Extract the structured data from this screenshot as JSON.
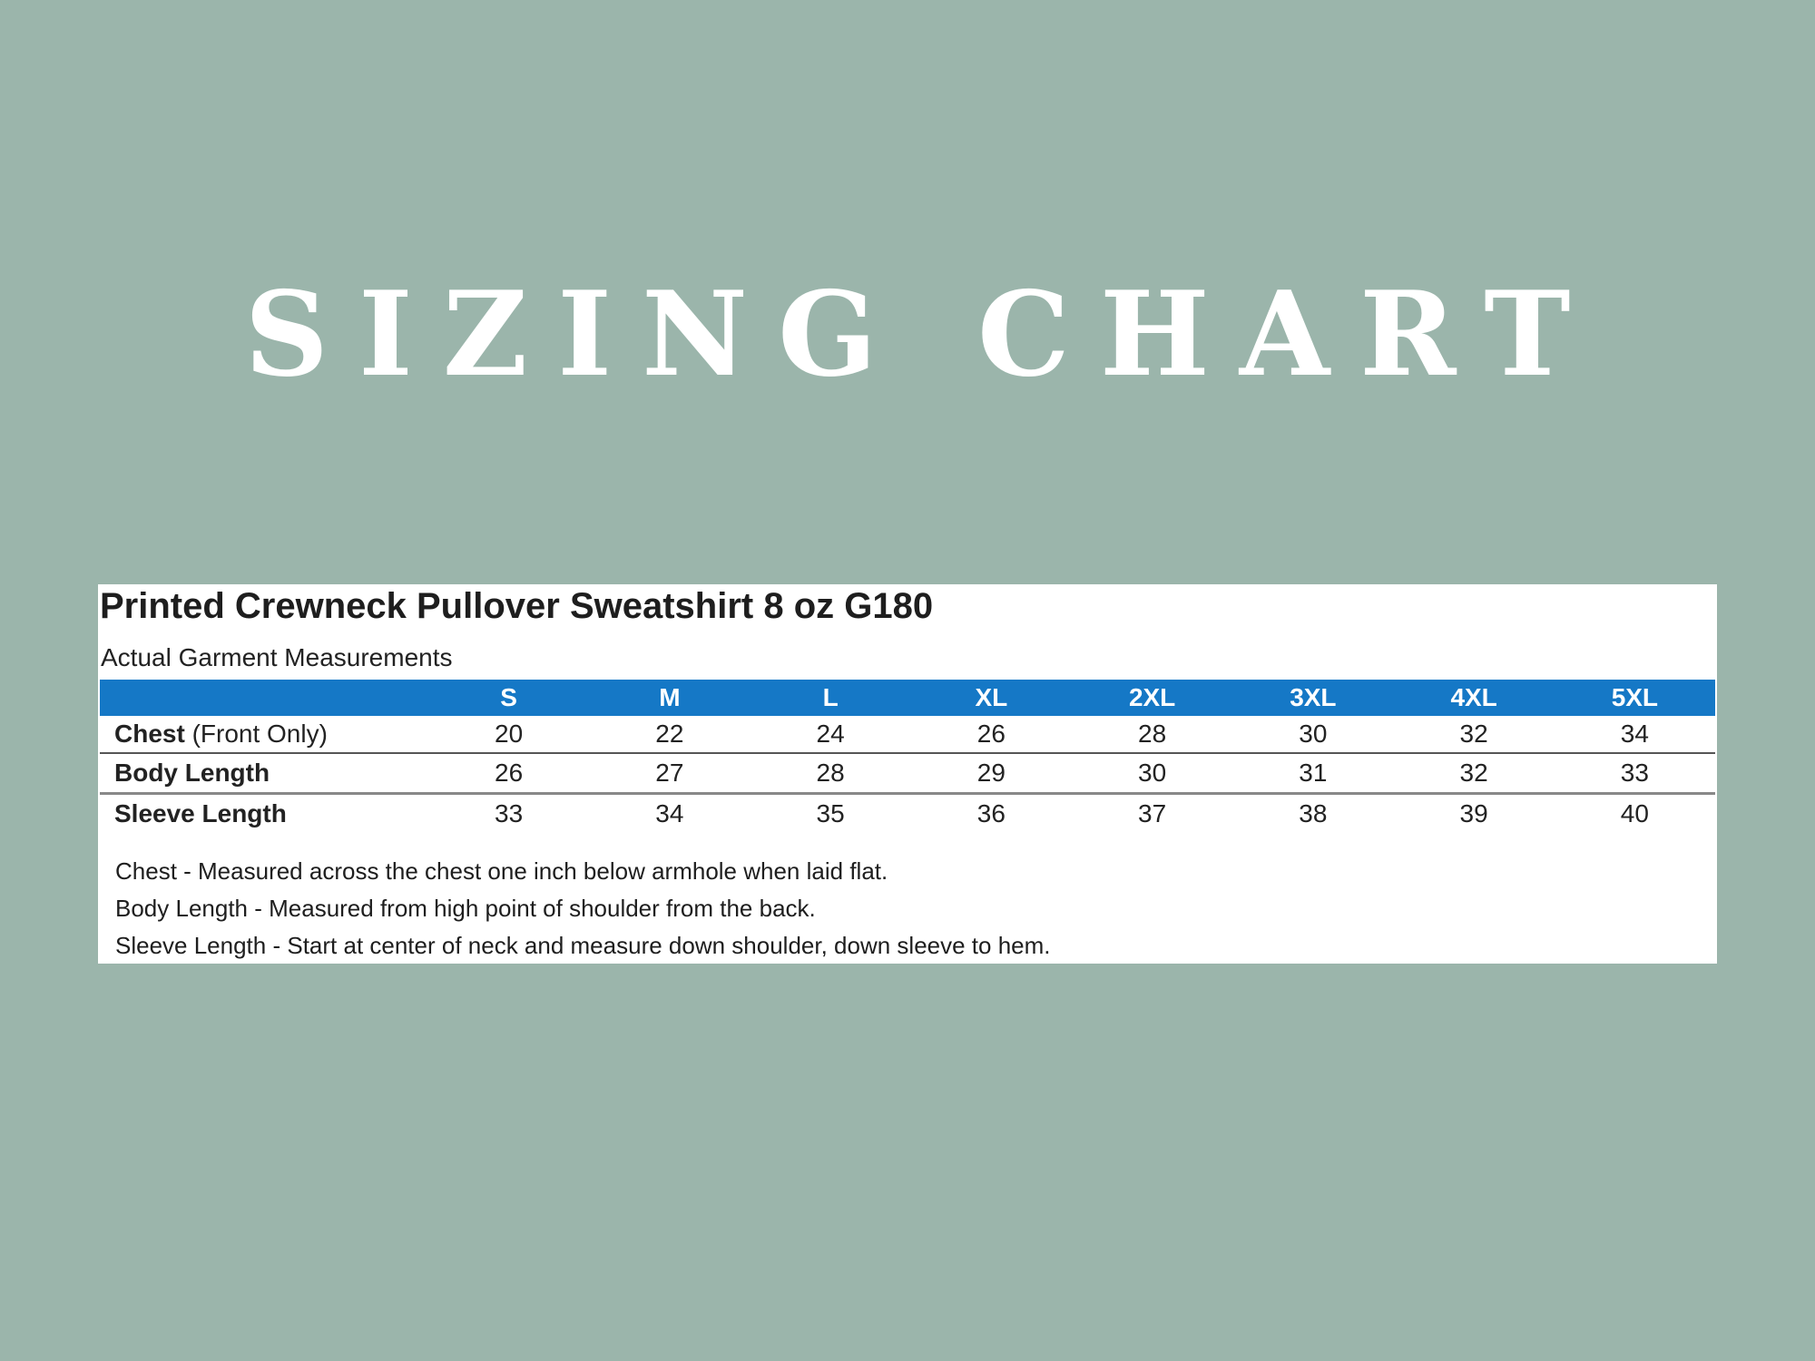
{
  "banner": {
    "title": "SIZING CHART"
  },
  "sheet": {
    "product_title": "Printed Crewneck Pullover Sweatshirt 8 oz G180",
    "subtitle": "Actual Garment Measurements",
    "header_color": "#1578c6",
    "background_color": "#9bb5ab"
  },
  "table": {
    "sizes": [
      "S",
      "M",
      "L",
      "XL",
      "2XL",
      "3XL",
      "4XL",
      "5XL"
    ],
    "rows": [
      {
        "label_bold": "Chest",
        "label_rest": " (Front Only)",
        "values": [
          "20",
          "22",
          "24",
          "26",
          "28",
          "30",
          "32",
          "34"
        ]
      },
      {
        "label_bold": "Body Length",
        "label_rest": "",
        "values": [
          "26",
          "27",
          "28",
          "29",
          "30",
          "31",
          "32",
          "33"
        ]
      },
      {
        "label_bold": "Sleeve Length",
        "label_rest": "",
        "values": [
          "33",
          "34",
          "35",
          "36",
          "37",
          "38",
          "39",
          "40"
        ]
      }
    ]
  },
  "notes": [
    "Chest - Measured across the chest one inch below armhole when laid flat.",
    "Body Length - Measured from high point of shoulder from the back.",
    "Sleeve Length - Start at center of neck and measure down shoulder, down sleeve to hem."
  ]
}
